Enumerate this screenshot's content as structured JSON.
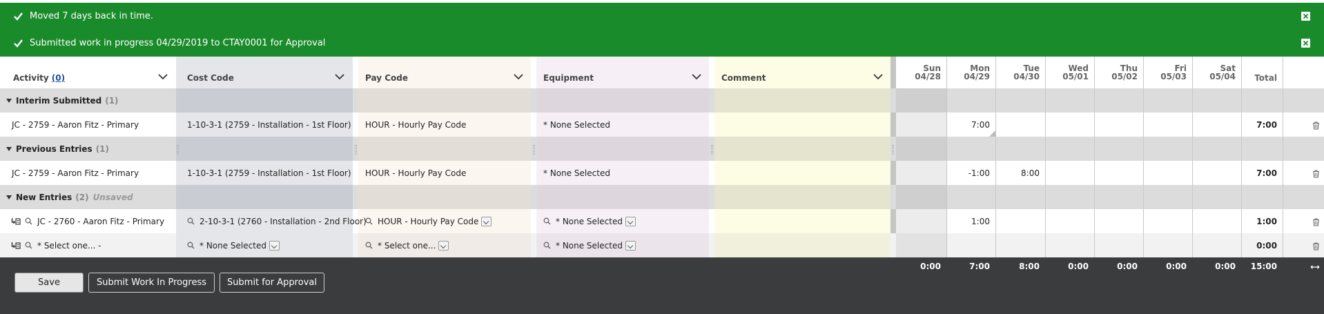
{
  "notifications": [
    {
      "text": "Moved 7 days back in time."
    },
    {
      "text": "Submitted work in progress 04/29/2019 to CTAY0001 for Approval"
    }
  ],
  "headers": {
    "activity": "Activity",
    "activity_count": "(0)",
    "cost_code": "Cost Code",
    "pay_code": "Pay Code",
    "equipment": "Equipment",
    "comment": "Comment",
    "total": "Total",
    "days": [
      {
        "name": "Sun",
        "date": "04/28"
      },
      {
        "name": "Mon",
        "date": "04/29"
      },
      {
        "name": "Tue",
        "date": "04/30"
      },
      {
        "name": "Wed",
        "date": "05/01"
      },
      {
        "name": "Thu",
        "date": "05/02"
      },
      {
        "name": "Fri",
        "date": "05/03"
      },
      {
        "name": "Sat",
        "date": "05/04"
      }
    ]
  },
  "groups": {
    "interim": {
      "label": "Interim Submitted",
      "count": "(1)"
    },
    "previous": {
      "label": "Previous Entries",
      "count": "(1)"
    },
    "new": {
      "label": "New Entries",
      "count": "(2)",
      "status": "Unsaved"
    }
  },
  "rows": {
    "interim": {
      "activity": "JC - 2759 - Aaron Fitz - Primary",
      "cost_code": "1-10-3-1 (2759 - Installation - 1st Floor)",
      "pay_code": "HOUR - Hourly Pay Code",
      "equipment": "* None Selected",
      "hours": [
        "",
        "7:00",
        "",
        "",
        "",
        "",
        ""
      ],
      "total": "7:00"
    },
    "previous": {
      "activity": "JC - 2759 - Aaron Fitz - Primary",
      "cost_code": "1-10-3-1 (2759 - Installation - 1st Floor)",
      "pay_code": "HOUR - Hourly Pay Code",
      "equipment": "* None Selected",
      "hours": [
        "",
        "-1:00",
        "8:00",
        "",
        "",
        "",
        ""
      ],
      "total": "7:00"
    },
    "new1": {
      "activity": "JC - 2760 - Aaron Fitz - Primary",
      "cost_code": "2-10-3-1 (2760 - Installation - 2nd Floor)",
      "pay_code": "HOUR - Hourly Pay Code",
      "equipment": "* None Selected",
      "hours": [
        "",
        "1:00",
        "",
        "",
        "",
        "",
        ""
      ],
      "total": "1:00"
    },
    "new2": {
      "activity": "* Select one... -",
      "cost_code": "* None Selected",
      "pay_code": "* Select one...",
      "equipment": "* None Selected",
      "hours": [
        "",
        "",
        "",
        "",
        "",
        "",
        ""
      ],
      "total": "0:00"
    }
  },
  "totals": {
    "days": [
      "0:00",
      "7:00",
      "8:00",
      "0:00",
      "0:00",
      "0:00",
      "0:00"
    ],
    "grand": "15:00"
  },
  "buttons": {
    "save": "Save",
    "submit_wip": "Submit Work In Progress",
    "submit_approval": "Submit for Approval"
  },
  "colors": {
    "banner": "#1a8b2b",
    "footer": "#3b3c3e",
    "cost_code_col": "#e4e6ea",
    "pay_code_col": "#fcf6f1",
    "equipment_col": "#f6f0f6",
    "comment_col": "#fdfde6"
  }
}
